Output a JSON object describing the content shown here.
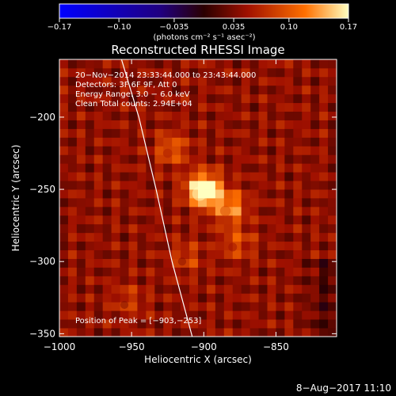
{
  "colorbar": {
    "ticks": [
      {
        "value": -0.17,
        "label": "−0.17"
      },
      {
        "value": -0.1,
        "label": "−0.10"
      },
      {
        "value": -0.035,
        "label": "−0.035"
      },
      {
        "value": 0.035,
        "label": "0.035"
      },
      {
        "value": 0.1,
        "label": "0.10"
      },
      {
        "value": 0.17,
        "label": "0.17"
      }
    ],
    "range": [
      -0.17,
      0.17
    ],
    "units_label": "(photons cm⁻² s⁻¹ asec⁻²)"
  },
  "chart_data": {
    "type": "heatmap",
    "title": "Reconstructed RHESSI Image",
    "xlabel": "Heliocentric X (arcsec)",
    "ylabel": "Heliocentric Y (arcsec)",
    "xlim": [
      -1000,
      -808
    ],
    "ylim": [
      -352,
      -160
    ],
    "x_ticks": [
      {
        "value": -1000,
        "label": "−1000"
      },
      {
        "value": -950,
        "label": "−950"
      },
      {
        "value": -900,
        "label": "−900"
      },
      {
        "value": -850,
        "label": "−850"
      }
    ],
    "y_ticks": [
      {
        "value": -200,
        "label": "−200"
      },
      {
        "value": -250,
        "label": "−250"
      },
      {
        "value": -300,
        "label": "−300"
      },
      {
        "value": -350,
        "label": "−350"
      }
    ],
    "annotations": [
      "20−Nov−2014 23:33:44.000 to 23:43:44.000",
      "Detectors: 3F 6F 9F, Att 0",
      "Energy Range: 3.0 − 6.0 keV",
      "Clean     Total counts: 2.94E+04"
    ],
    "peak_label": "Position of Peak = [−903,−253]",
    "peak": {
      "x": -903,
      "y": -253
    },
    "sources": [
      {
        "x": -903,
        "y": -253,
        "value": 0.17
      },
      {
        "x": -885,
        "y": -265,
        "value": 0.09
      },
      {
        "x": -925,
        "y": -225,
        "value": 0.06
      },
      {
        "x": -880,
        "y": -290,
        "value": 0.05
      },
      {
        "x": -915,
        "y": -300,
        "value": 0.04
      },
      {
        "x": -955,
        "y": -330,
        "value": 0.035
      }
    ],
    "limb_points": [
      {
        "x": -957,
        "y": -160
      },
      {
        "x": -945,
        "y": -200
      },
      {
        "x": -933,
        "y": -250
      },
      {
        "x": -922,
        "y": -300
      },
      {
        "x": -908,
        "y": -352
      }
    ]
  },
  "footer_date": "8−Aug−2017 11:10"
}
